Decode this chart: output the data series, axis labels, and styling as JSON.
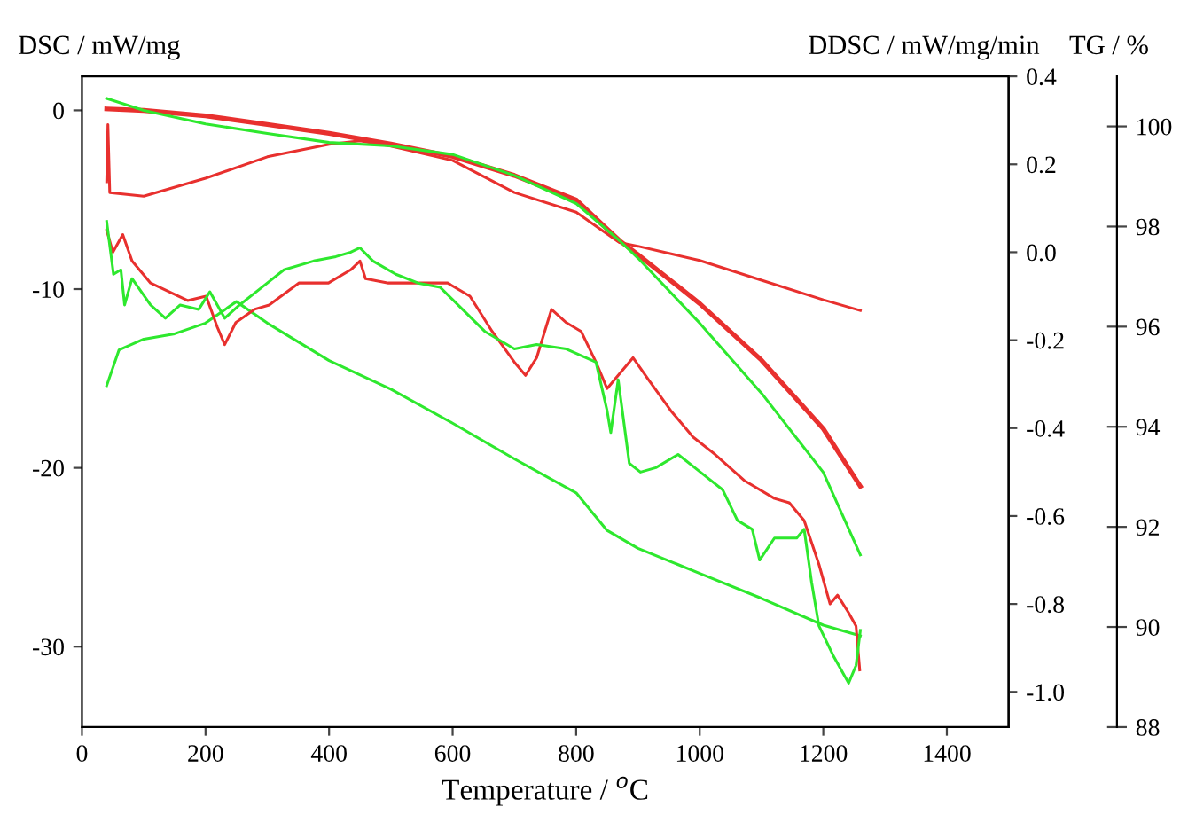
{
  "chart_data": {
    "type": "line",
    "xlabel": "Temperature / $^{o}$C",
    "ylabel": "DSC / mW/mg",
    "y2label": "DDSC / mW/mg/min",
    "y3label": "TG / %",
    "xlim": [
      0,
      1500
    ],
    "xticks": [
      0,
      200,
      400,
      600,
      800,
      1000,
      1200,
      1400
    ],
    "ylim": [
      -34.5,
      1.9
    ],
    "yticks": [
      {
        "value": 0,
        "label": "0"
      },
      {
        "value": -10,
        "label": "-10"
      },
      {
        "value": -20,
        "label": "-20"
      },
      {
        "value": -30,
        "label": "-30"
      }
    ],
    "y2lim": [
      -1.08,
      0.4
    ],
    "y2ticks": [
      {
        "value": 0.4,
        "label": "0.4"
      },
      {
        "value": 0.2,
        "label": "0.2"
      },
      {
        "value": 0.0,
        "label": "0.0"
      },
      {
        "value": -0.2,
        "label": "-0.2"
      },
      {
        "value": -0.4,
        "label": "-0.4"
      },
      {
        "value": -0.6,
        "label": "-0.6"
      },
      {
        "value": -0.8,
        "label": "-0.8"
      },
      {
        "value": -1.0,
        "label": "-1.0"
      }
    ],
    "y3lim": [
      88,
      101
    ],
    "y3ticks": [
      88,
      90,
      92,
      94,
      96,
      98,
      100
    ],
    "marker": "none",
    "line_style": "solid",
    "series": [
      {
        "axis": "y3",
        "color": "#e8302e",
        "x": [
          40,
          100,
          200,
          300,
          400,
          500,
          600,
          700,
          800,
          870,
          900,
          1000,
          1100,
          1200,
          1260
        ],
        "values": [
          100.35,
          100.32,
          100.21,
          100.04,
          99.86,
          99.65,
          99.4,
          99.02,
          98.53,
          97.72,
          97.44,
          96.46,
          95.33,
          93.96,
          92.81
        ]
      },
      {
        "axis": "y3",
        "color": "#2ee82e",
        "x": [
          40,
          100,
          200,
          300,
          400,
          500,
          600,
          700,
          800,
          870,
          900,
          1000,
          1100,
          1200,
          1260
        ],
        "values": [
          100.56,
          100.32,
          100.05,
          99.86,
          99.68,
          99.61,
          99.44,
          99.02,
          98.46,
          97.72,
          97.37,
          96.07,
          94.67,
          93.09,
          91.44
        ]
      },
      {
        "axis": "y",
        "color": "#e8302e",
        "x": [
          40,
          42,
          45,
          100,
          200,
          300,
          400,
          450,
          500,
          600,
          700,
          800,
          870,
          900,
          1000,
          1100,
          1200,
          1260
        ],
        "values": [
          -4.0,
          -0.8,
          -4.6,
          -4.8,
          -3.8,
          -2.6,
          -1.9,
          -1.7,
          -2.0,
          -2.8,
          -4.6,
          -5.7,
          -7.4,
          -7.6,
          -8.4,
          -9.5,
          -10.6,
          -11.2
        ]
      },
      {
        "axis": "y",
        "color": "#2ee82e",
        "x": [
          40,
          60,
          100,
          150,
          200,
          250,
          300,
          400,
          500,
          600,
          700,
          800,
          850,
          900,
          1000,
          1100,
          1200,
          1260
        ],
        "values": [
          -15.4,
          -13.4,
          -12.8,
          -12.5,
          -11.9,
          -10.7,
          -11.9,
          -14.0,
          -15.6,
          -17.5,
          -19.5,
          -21.4,
          -23.5,
          -24.5,
          -25.9,
          -27.3,
          -28.8,
          -29.4
        ]
      },
      {
        "axis": "y2",
        "color": "#e8302e",
        "x": [
          40,
          50,
          66,
          81,
          111,
          171,
          201,
          219,
          231,
          249,
          279,
          303,
          351,
          399,
          435,
          450,
          459,
          496,
          544,
          592,
          628,
          664,
          700,
          718,
          736,
          760,
          784,
          808,
          832,
          850,
          874,
          892,
          917,
          953,
          989,
          1025,
          1073,
          1121,
          1145,
          1169,
          1193,
          1211,
          1223,
          1241,
          1253,
          1259
        ],
        "values": [
          0.05,
          0.0,
          0.04,
          -0.02,
          -0.07,
          -0.11,
          -0.1,
          -0.17,
          -0.21,
          -0.16,
          -0.13,
          -0.12,
          -0.07,
          -0.07,
          -0.04,
          -0.02,
          -0.06,
          -0.07,
          -0.07,
          -0.07,
          -0.1,
          -0.18,
          -0.25,
          -0.28,
          -0.24,
          -0.13,
          -0.16,
          -0.18,
          -0.25,
          -0.31,
          -0.27,
          -0.24,
          -0.29,
          -0.36,
          -0.42,
          -0.46,
          -0.52,
          -0.56,
          -0.57,
          -0.61,
          -0.71,
          -0.8,
          -0.78,
          -0.82,
          -0.85,
          -0.95
        ]
      },
      {
        "axis": "y2",
        "color": "#2ee82e",
        "x": [
          40,
          51,
          63,
          69,
          81,
          111,
          135,
          159,
          189,
          207,
          231,
          255,
          291,
          327,
          375,
          411,
          435,
          450,
          471,
          508,
          544,
          580,
          616,
          652,
          700,
          736,
          784,
          832,
          850,
          856,
          868,
          886,
          904,
          929,
          965,
          1001,
          1037,
          1061,
          1085,
          1097,
          1121,
          1157,
          1169,
          1181,
          1193,
          1217,
          1241,
          1253,
          1260
        ],
        "values": [
          0.07,
          -0.05,
          -0.04,
          -0.12,
          -0.06,
          -0.12,
          -0.15,
          -0.12,
          -0.13,
          -0.09,
          -0.15,
          -0.12,
          -0.08,
          -0.04,
          -0.02,
          -0.01,
          0.0,
          0.01,
          -0.02,
          -0.05,
          -0.07,
          -0.08,
          -0.13,
          -0.18,
          -0.22,
          -0.21,
          -0.22,
          -0.25,
          -0.36,
          -0.41,
          -0.29,
          -0.48,
          -0.5,
          -0.49,
          -0.46,
          -0.5,
          -0.54,
          -0.61,
          -0.63,
          -0.7,
          -0.65,
          -0.65,
          -0.63,
          -0.75,
          -0.85,
          -0.92,
          -0.98,
          -0.94,
          -0.86
        ]
      }
    ]
  }
}
